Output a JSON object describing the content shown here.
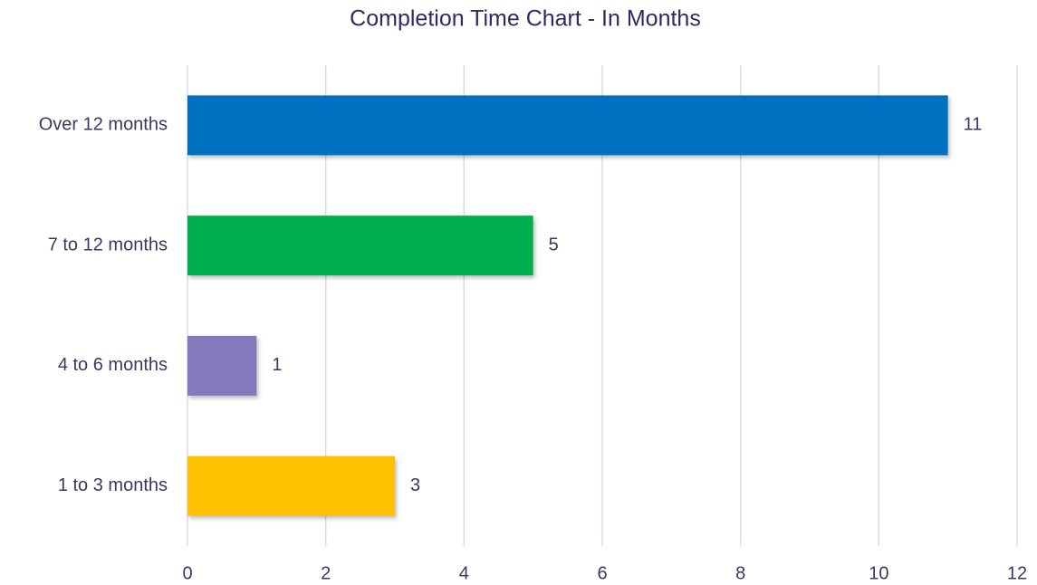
{
  "chart_data": {
    "type": "barh",
    "title": "Completion Time Chart - In Months",
    "categories": [
      "Over 12 months",
      "7 to 12 months",
      "4 to 6 months",
      "1 to 3 months"
    ],
    "values": [
      11,
      5,
      1,
      3
    ],
    "colors": [
      "#0070c0",
      "#00b050",
      "#8479bc",
      "#ffc000"
    ],
    "xlim": [
      0,
      12
    ],
    "xticks": [
      0,
      2,
      4,
      6,
      8,
      10,
      12
    ],
    "grid": true
  }
}
